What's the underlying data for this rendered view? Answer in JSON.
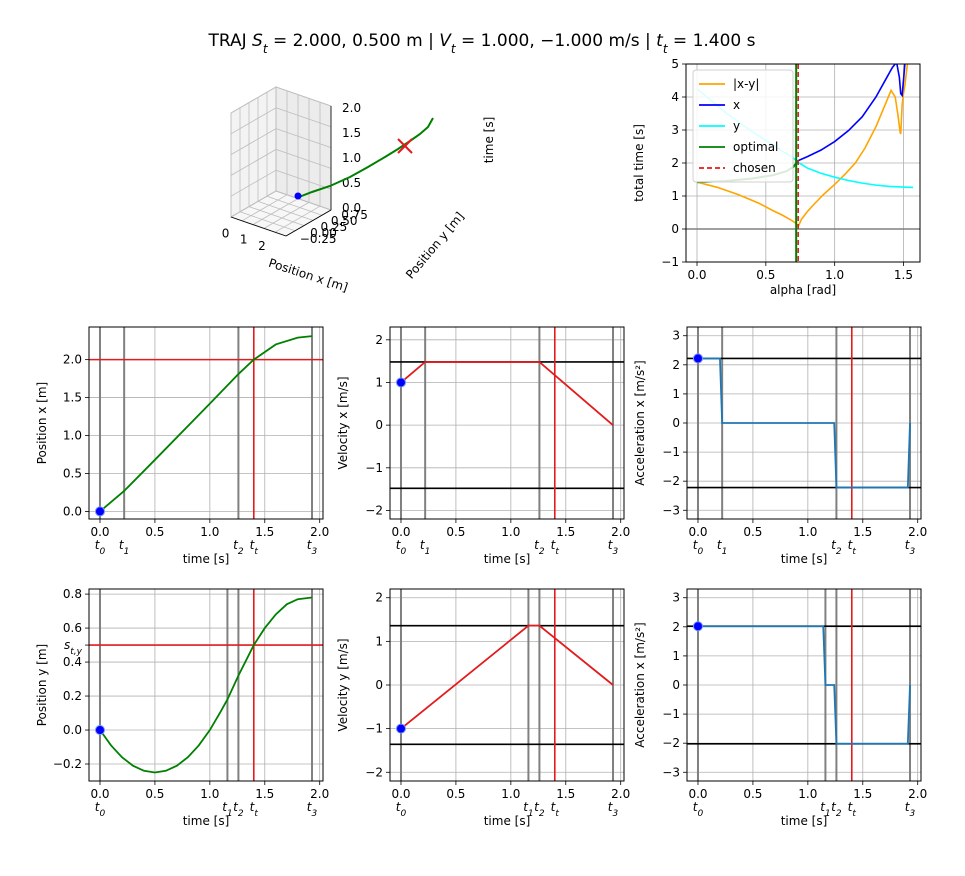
{
  "title": "TRAJ S_t = 2.000, 0.500 m | V_t = 1.000, −1.000 m/s | t_t = 1.400 s",
  "colors": {
    "optimal": "#008000",
    "target": "#e41a1c",
    "bound": "#000000",
    "marker": "#808080",
    "start": "#0000ff",
    "accel": "#1f77b4",
    "xy": "#ffa500",
    "x": "#0000ff",
    "y": "#00ffff",
    "zero": "#808080"
  },
  "chart_data": [
    {
      "id": "traj3d",
      "type": "line",
      "projection": "3d",
      "xlabel": "Position x [m]",
      "ylabel": "Position y [m]",
      "zlabel": "time [s]",
      "xticks": [
        0,
        1,
        2
      ],
      "yticks": [
        "−0.25",
        "0.00",
        "0.25",
        "0.50",
        "0.75"
      ],
      "zticks": [
        "0.0",
        "0.5",
        "1.0",
        "1.5",
        "2.0"
      ],
      "series": [
        {
          "name": "optimal"
        }
      ],
      "target_marker": {
        "x": 2.0,
        "y": 0.5,
        "t": 1.4
      },
      "start_marker": {
        "x": 0.0,
        "y": 0.0,
        "t": 0.0
      }
    },
    {
      "id": "alpha",
      "type": "line",
      "xlabel": "alpha [rad]",
      "ylabel": "total time [s]",
      "xlim": [
        -0.08,
        1.62
      ],
      "ylim": [
        -1,
        5
      ],
      "xticks": [
        0.0,
        0.5,
        1.0,
        1.5
      ],
      "xtick_labels": [
        "0.0",
        "0.5",
        "1.0",
        "1.5"
      ],
      "yticks": [
        -1,
        0,
        1,
        2,
        3,
        4,
        5
      ],
      "ytick_labels": [
        "−1",
        "0",
        "1",
        "2",
        "3",
        "4",
        "5"
      ],
      "legend": {
        "placement": "top-left",
        "entries": [
          "|x-y|",
          "x",
          "y",
          "optimal",
          "chosen"
        ]
      },
      "chosen_alpha": 0.735,
      "series": [
        {
          "name": "|x-y|",
          "x": [
            0.0,
            0.15,
            0.3,
            0.45,
            0.55,
            0.62,
            0.68,
            0.71,
            0.73,
            0.735,
            0.74,
            0.76,
            0.8,
            0.85,
            0.92,
            1.0,
            1.08,
            1.15,
            1.22,
            1.3,
            1.36,
            1.41,
            1.44,
            1.46,
            1.475,
            1.48,
            1.485,
            1.49,
            1.5,
            1.51,
            1.52,
            1.53
          ],
          "y": [
            1.42,
            1.26,
            1.04,
            0.78,
            0.56,
            0.42,
            0.28,
            0.2,
            0.12,
            0.08,
            0.12,
            0.3,
            0.52,
            0.75,
            1.05,
            1.35,
            1.68,
            2.0,
            2.45,
            3.1,
            3.7,
            4.2,
            4.0,
            3.45,
            2.95,
            2.88,
            3.3,
            3.75,
            4.1,
            4.35,
            4.7,
            5.05
          ]
        },
        {
          "name": "x",
          "x": [
            0.0,
            0.2,
            0.4,
            0.55,
            0.65,
            0.7,
            0.735,
            0.8,
            0.9,
            1.0,
            1.1,
            1.2,
            1.3,
            1.38,
            1.42,
            1.45,
            1.47,
            1.48,
            1.49,
            1.5,
            1.51,
            1.52,
            1.53
          ],
          "y": [
            1.42,
            1.45,
            1.53,
            1.63,
            1.75,
            1.88,
            2.07,
            2.19,
            2.39,
            2.65,
            2.98,
            3.4,
            4.0,
            4.6,
            4.9,
            5.05,
            4.6,
            4.1,
            4.05,
            4.5,
            5.0,
            5.05,
            5.05
          ]
        },
        {
          "name": "y",
          "x": [
            0.0,
            0.2,
            0.4,
            0.55,
            0.65,
            0.7,
            0.735,
            0.8,
            0.9,
            1.0,
            1.1,
            1.2,
            1.3,
            1.4,
            1.5,
            1.57
          ],
          "y": [
            4.25,
            3.55,
            2.95,
            2.55,
            2.28,
            2.15,
            2.02,
            1.85,
            1.69,
            1.57,
            1.47,
            1.39,
            1.33,
            1.29,
            1.27,
            1.26
          ]
        },
        {
          "name": "optimal",
          "x": [
            0.0,
            0.2,
            0.4,
            0.55,
            0.65,
            0.7,
            0.735
          ],
          "y": [
            1.42,
            1.45,
            1.53,
            1.63,
            1.75,
            1.88,
            2.07
          ]
        }
      ]
    },
    {
      "id": "pos_x",
      "type": "line",
      "xlabel": "time [s]",
      "ylabel": "Position x [m]",
      "xlim": [
        -0.1,
        2.03
      ],
      "ylim": [
        -0.1,
        2.43
      ],
      "xticks": [
        0.0,
        0.5,
        1.0,
        1.5,
        2.0
      ],
      "xtick_labels": [
        "0.0",
        "0.5",
        "1.0",
        "1.5",
        "2.0"
      ],
      "yticks": [
        0.0,
        0.5,
        1.0,
        1.5,
        2.0
      ],
      "ytick_labels": [
        "0.0",
        "0.5",
        "1.0",
        "1.5",
        "2.0"
      ],
      "markers": [
        {
          "t": 0.0,
          "label": "t0"
        },
        {
          "t": 0.22,
          "label": "t1"
        },
        {
          "t": 1.26,
          "label": "t2"
        },
        {
          "t": 1.4,
          "label": "tt"
        },
        {
          "t": 1.93,
          "label": "t3"
        }
      ],
      "target_t": 1.4,
      "target_value": 2.0,
      "series": [
        {
          "name": "optimal",
          "x": [
            0.0,
            0.22,
            0.5,
            1.0,
            1.26,
            1.4,
            1.6,
            1.8,
            1.93
          ],
          "y": [
            0.0,
            0.27,
            0.68,
            1.42,
            1.81,
            2.0,
            2.2,
            2.29,
            2.31
          ]
        }
      ],
      "start": {
        "t": 0.0,
        "value": 0.0
      }
    },
    {
      "id": "vel_x",
      "type": "line",
      "xlabel": "time [s]",
      "ylabel": "Velocity x [m/s]",
      "xlim": [
        -0.1,
        2.03
      ],
      "ylim": [
        -2.2,
        2.3
      ],
      "xticks": [
        0.0,
        0.5,
        1.0,
        1.5,
        2.0
      ],
      "xtick_labels": [
        "0.0",
        "0.5",
        "1.0",
        "1.5",
        "2.0"
      ],
      "yticks": [
        -2,
        -1,
        0,
        1,
        2
      ],
      "ytick_labels": [
        "−2",
        "−1",
        "0",
        "1",
        "2"
      ],
      "markers": [
        {
          "t": 0.0,
          "label": "t0"
        },
        {
          "t": 0.22,
          "label": "t1"
        },
        {
          "t": 1.26,
          "label": "t2"
        },
        {
          "t": 1.4,
          "label": "tt"
        },
        {
          "t": 1.93,
          "label": "t3"
        }
      ],
      "target_t": 1.4,
      "bounds": [
        1.48,
        -1.48
      ],
      "series": [
        {
          "name": "optimal",
          "x": [
            0.0,
            0.22,
            1.26,
            1.93
          ],
          "y": [
            1.0,
            1.48,
            1.48,
            0.0
          ]
        }
      ],
      "start": {
        "t": 0.0,
        "value": 1.0
      }
    },
    {
      "id": "acc_x",
      "type": "line",
      "xlabel": "time [s]",
      "ylabel": "Acceleration x [m/s²]",
      "xlim": [
        -0.1,
        2.03
      ],
      "ylim": [
        -3.3,
        3.3
      ],
      "xticks": [
        0.0,
        0.5,
        1.0,
        1.5,
        2.0
      ],
      "xtick_labels": [
        "0.0",
        "0.5",
        "1.0",
        "1.5",
        "2.0"
      ],
      "yticks": [
        -3,
        -2,
        -1,
        0,
        1,
        2,
        3
      ],
      "ytick_labels": [
        "−3",
        "−2",
        "−1",
        "0",
        "1",
        "2",
        "3"
      ],
      "markers": [
        {
          "t": 0.0,
          "label": "t0"
        },
        {
          "t": 0.22,
          "label": "t1"
        },
        {
          "t": 1.26,
          "label": "t2"
        },
        {
          "t": 1.4,
          "label": "tt"
        },
        {
          "t": 1.93,
          "label": "t3"
        }
      ],
      "target_t": 1.4,
      "bounds": [
        2.22,
        -2.22
      ],
      "series": [
        {
          "name": "optimal",
          "x": [
            0.0,
            0.2,
            0.22,
            1.24,
            1.26,
            1.91,
            1.93
          ],
          "y": [
            2.22,
            2.22,
            0.0,
            0.0,
            -2.22,
            -2.22,
            0.0
          ]
        }
      ],
      "start": {
        "t": 0.0,
        "value": 2.22
      }
    },
    {
      "id": "pos_y",
      "type": "line",
      "xlabel": "time [s]",
      "ylabel": "Position y [m]",
      "xlim": [
        -0.1,
        2.03
      ],
      "ylim": [
        -0.3,
        0.83
      ],
      "xticks": [
        0.0,
        0.5,
        1.0,
        1.5,
        2.0
      ],
      "xtick_labels": [
        "0.0",
        "0.5",
        "1.0",
        "1.5",
        "2.0"
      ],
      "yticks": [
        -0.2,
        0.0,
        0.2,
        0.4,
        0.6,
        0.8
      ],
      "ytick_labels": [
        "−0.2",
        "0.0",
        "0.2",
        "0.4",
        "0.6",
        "0.8"
      ],
      "extra_ytick": {
        "value": 0.5,
        "label": "s_t,y"
      },
      "markers": [
        {
          "t": 0.0,
          "label": "t0"
        },
        {
          "t": 1.16,
          "label": "t1"
        },
        {
          "t": 1.26,
          "label": "t2"
        },
        {
          "t": 1.4,
          "label": "tt"
        },
        {
          "t": 1.93,
          "label": "t3"
        }
      ],
      "target_t": 1.4,
      "target_value": 0.5,
      "series": [
        {
          "name": "optimal",
          "x": [
            0.0,
            0.1,
            0.2,
            0.3,
            0.4,
            0.5,
            0.6,
            0.7,
            0.8,
            0.9,
            1.0,
            1.1,
            1.16,
            1.26,
            1.4,
            1.5,
            1.6,
            1.7,
            1.8,
            1.93
          ],
          "y": [
            0.0,
            -0.09,
            -0.16,
            -0.21,
            -0.24,
            -0.25,
            -0.24,
            -0.21,
            -0.16,
            -0.09,
            0.0,
            0.11,
            0.18,
            0.32,
            0.5,
            0.6,
            0.68,
            0.74,
            0.77,
            0.78
          ]
        }
      ],
      "start": {
        "t": 0.0,
        "value": 0.0
      }
    },
    {
      "id": "vel_y",
      "type": "line",
      "xlabel": "time [s]",
      "ylabel": "Velocity y [m/s]",
      "xlim": [
        -0.1,
        2.03
      ],
      "ylim": [
        -2.2,
        2.2
      ],
      "xticks": [
        0.0,
        0.5,
        1.0,
        1.5,
        2.0
      ],
      "xtick_labels": [
        "0.0",
        "0.5",
        "1.0",
        "1.5",
        "2.0"
      ],
      "yticks": [
        -2,
        -1,
        0,
        1,
        2
      ],
      "ytick_labels": [
        "−2",
        "−1",
        "0",
        "1",
        "2"
      ],
      "markers": [
        {
          "t": 0.0,
          "label": "t0"
        },
        {
          "t": 1.16,
          "label": "t1"
        },
        {
          "t": 1.26,
          "label": "t2"
        },
        {
          "t": 1.4,
          "label": "tt"
        },
        {
          "t": 1.93,
          "label": "t3"
        }
      ],
      "target_t": 1.4,
      "bounds": [
        1.36,
        -1.36
      ],
      "series": [
        {
          "name": "optimal",
          "x": [
            0.0,
            1.16,
            1.26,
            1.93
          ],
          "y": [
            -1.0,
            1.36,
            1.36,
            0.0
          ]
        }
      ],
      "start": {
        "t": 0.0,
        "value": -1.0
      }
    },
    {
      "id": "acc_y",
      "type": "line",
      "xlabel": "time [s]",
      "ylabel": "Acceleration x [m/s²]",
      "xlim": [
        -0.1,
        2.03
      ],
      "ylim": [
        -3.3,
        3.3
      ],
      "xticks": [
        0.0,
        0.5,
        1.0,
        1.5,
        2.0
      ],
      "xtick_labels": [
        "0.0",
        "0.5",
        "1.0",
        "1.5",
        "2.0"
      ],
      "yticks": [
        -3,
        -2,
        -1,
        0,
        1,
        2,
        3
      ],
      "ytick_labels": [
        "−3",
        "−2",
        "−1",
        "0",
        "1",
        "2",
        "3"
      ],
      "markers": [
        {
          "t": 0.0,
          "label": "t0"
        },
        {
          "t": 1.16,
          "label": "t1"
        },
        {
          "t": 1.26,
          "label": "t2"
        },
        {
          "t": 1.4,
          "label": "tt"
        },
        {
          "t": 1.93,
          "label": "t3"
        }
      ],
      "target_t": 1.4,
      "bounds": [
        2.02,
        -2.02
      ],
      "series": [
        {
          "name": "optimal",
          "x": [
            0.0,
            1.14,
            1.16,
            1.24,
            1.26,
            1.91,
            1.93
          ],
          "y": [
            2.02,
            2.02,
            0.0,
            0.0,
            -2.02,
            -2.02,
            0.0
          ]
        }
      ],
      "start": {
        "t": 0.0,
        "value": 2.02
      }
    }
  ]
}
